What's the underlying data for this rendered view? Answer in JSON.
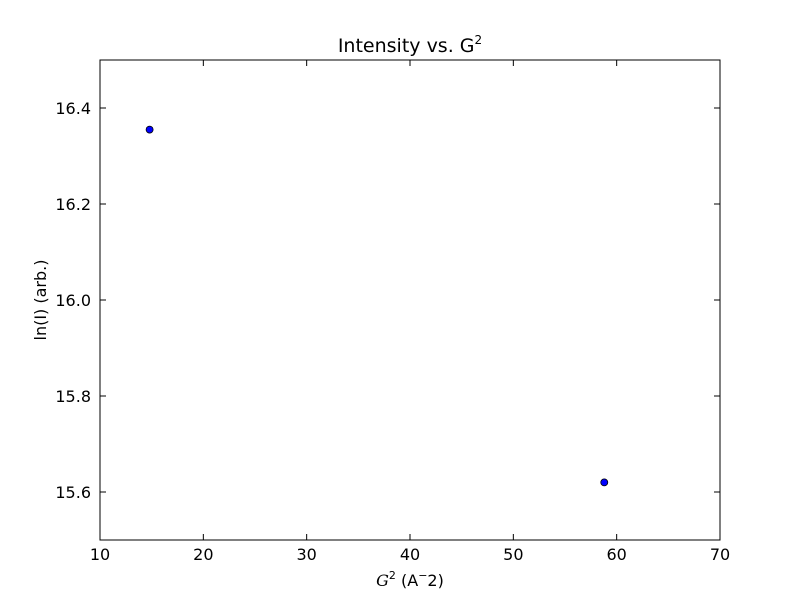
{
  "chart_data": {
    "type": "scatter",
    "title": "Intensity vs. G",
    "title_superscript": "2",
    "xlabel": {
      "var": "G",
      "var_sup": "2",
      "unit_open": " (A",
      "unit_sup": "−",
      "unit_close": "2)"
    },
    "ylabel": "ln(I) (arb.)",
    "xlim": [
      10,
      70
    ],
    "ylim": [
      15.5,
      16.5
    ],
    "xticks": [
      10,
      20,
      30,
      40,
      50,
      60,
      70
    ],
    "xtick_labels": [
      "10",
      "20",
      "30",
      "40",
      "50",
      "60",
      "70"
    ],
    "yticks": [
      15.6,
      15.8,
      16.0,
      16.2,
      16.4
    ],
    "ytick_labels": [
      "15.6",
      "15.8",
      "16.0",
      "16.2",
      "16.4"
    ],
    "grid": false,
    "legend": false,
    "marker_color": "#0000ff",
    "points": [
      {
        "x": 14.8,
        "y": 16.355
      },
      {
        "x": 58.8,
        "y": 15.62
      }
    ]
  }
}
